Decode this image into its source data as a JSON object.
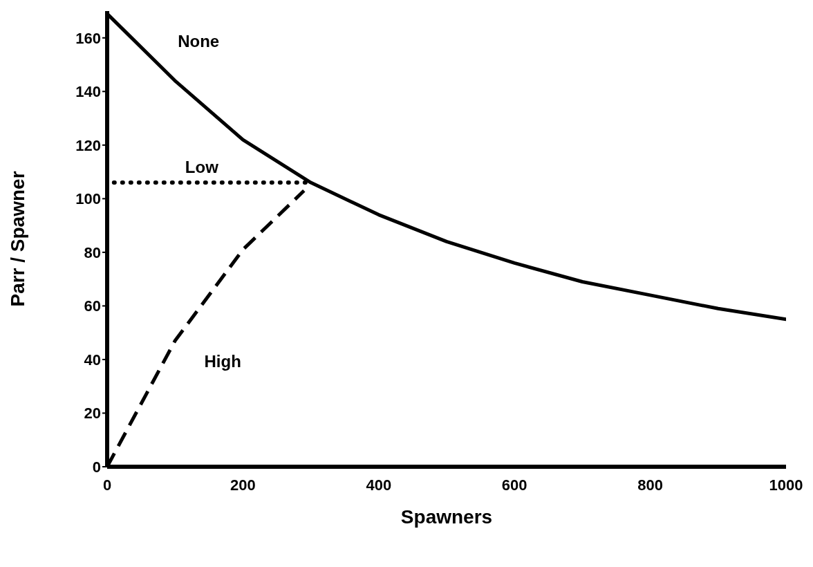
{
  "chart_data": {
    "type": "line",
    "xlabel": "Spawners",
    "ylabel": "Parr / Spawner",
    "xlim": [
      0,
      1000
    ],
    "xticks": [
      0,
      200,
      400,
      600,
      800,
      1000
    ],
    "ylim": [
      0,
      170
    ],
    "yticks": [
      0,
      20,
      40,
      60,
      80,
      100,
      120,
      140,
      160
    ],
    "grid": false,
    "marker": "none",
    "series": [
      {
        "name": "None",
        "color": "#000000",
        "line_style": "solid",
        "x": [
          0,
          100,
          200,
          300,
          400,
          500,
          600,
          700,
          800,
          900,
          1000
        ],
        "values": [
          169,
          144,
          122,
          106,
          94,
          84,
          76,
          69,
          64,
          59,
          55
        ]
      },
      {
        "name": "Low",
        "color": "#000000",
        "line_style": "dotted",
        "x": [
          10,
          300
        ],
        "values": [
          106,
          106
        ]
      },
      {
        "name": "High",
        "color": "#000000",
        "line_style": "dashed",
        "x": [
          0,
          100,
          200,
          290
        ],
        "values": [
          0,
          47,
          81,
          103
        ]
      }
    ]
  }
}
